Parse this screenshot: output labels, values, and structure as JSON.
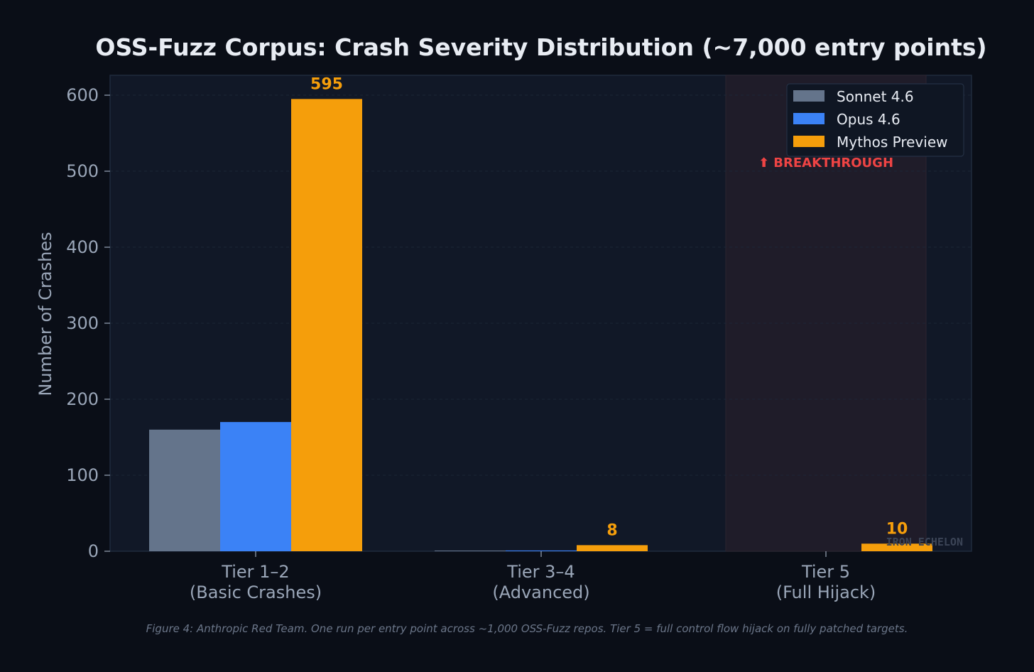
{
  "colors": {
    "background": "#0a0e17",
    "plot_background": "#111827",
    "plot_border": "#1f2a3d",
    "grid": "#1c2636",
    "text_primary": "#e8ecf3",
    "text_muted": "#9aa6b8",
    "caption": "#6b7689",
    "highlight_band": "#1f1c29",
    "breakthrough": "#ef4444",
    "watermark": "#3b4456"
  },
  "chart_data": {
    "type": "bar",
    "title": "OSS-Fuzz Corpus: Crash Severity Distribution (~7,000 entry points)",
    "xlabel": "",
    "ylabel": "Number of Crashes",
    "ylim": [
      0,
      625
    ],
    "yticks": [
      0,
      100,
      200,
      300,
      400,
      500,
      600
    ],
    "grid": true,
    "legend_position": "top-right",
    "categories": [
      {
        "line1": "Tier 1–2",
        "line2": "(Basic Crashes)"
      },
      {
        "line1": "Tier 3–4",
        "line2": "(Advanced)"
      },
      {
        "line1": "Tier 5",
        "line2": "(Full Hijack)"
      }
    ],
    "series": [
      {
        "name": "Sonnet 4.6",
        "color": "#64748b",
        "values": [
          160,
          0.5,
          0
        ],
        "labels": [
          "",
          "",
          ""
        ]
      },
      {
        "name": "Opus 4.6",
        "color": "#3b82f6",
        "values": [
          170,
          1,
          0
        ],
        "labels": [
          "",
          "",
          ""
        ]
      },
      {
        "name": "Mythos Preview",
        "color": "#f59e0b",
        "values": [
          595,
          8,
          10
        ],
        "labels": [
          "595",
          "8",
          "10"
        ]
      }
    ],
    "highlight": {
      "category_index": 2,
      "annotation": "⬆ BREAKTHROUGH"
    }
  },
  "caption": "Figure 4: Anthropic Red Team. One run per entry point across ~1,000 OSS-Fuzz repos. Tier 5 = full control flow hijack on fully patched targets.",
  "watermark": "IRON ECHELON"
}
